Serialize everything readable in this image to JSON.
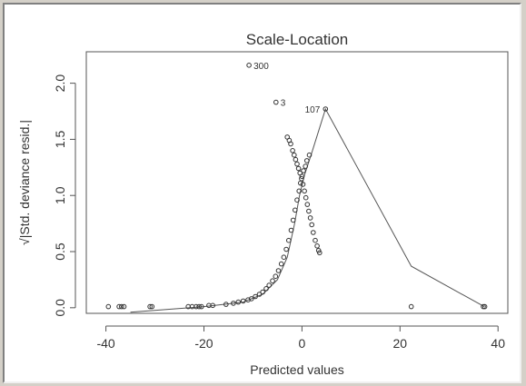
{
  "chart_data": {
    "type": "scatter",
    "title": "Scale-Location",
    "xlabel": "Predicted values",
    "ylabel": "√|Std. deviance resid.|",
    "xlim": [
      -44,
      42
    ],
    "ylim": [
      -0.05,
      2.28
    ],
    "xticks": [
      -40,
      -20,
      0,
      20,
      40
    ],
    "xtick_labels": [
      "-40",
      "-20",
      "0",
      "20",
      "40"
    ],
    "yticks": [
      0.0,
      0.5,
      1.0,
      1.5,
      2.0
    ],
    "ytick_labels": [
      "0.0",
      "0.5",
      "1.0",
      "1.5",
      "2.0"
    ],
    "grid": false,
    "points": [
      [
        -39.5,
        0.01
      ],
      [
        -37.3,
        0.01
      ],
      [
        -36.8,
        0.01
      ],
      [
        -36.3,
        0.01
      ],
      [
        -31.0,
        0.01
      ],
      [
        -30.6,
        0.01
      ],
      [
        -23.2,
        0.01
      ],
      [
        -22.4,
        0.01
      ],
      [
        -21.6,
        0.01
      ],
      [
        -21.0,
        0.01
      ],
      [
        -20.5,
        0.01
      ],
      [
        -19.0,
        0.02
      ],
      [
        -18.2,
        0.02
      ],
      [
        -15.5,
        0.03
      ],
      [
        -14.0,
        0.04
      ],
      [
        -13.0,
        0.05
      ],
      [
        -12.0,
        0.06
      ],
      [
        -11.0,
        0.07
      ],
      [
        -10.3,
        0.08
      ],
      [
        -9.5,
        0.1
      ],
      [
        -8.7,
        0.12
      ],
      [
        -8.0,
        0.14
      ],
      [
        -7.3,
        0.17
      ],
      [
        -6.7,
        0.2
      ],
      [
        -6.0,
        0.24
      ],
      [
        -5.4,
        0.28
      ],
      [
        -4.8,
        0.33
      ],
      [
        -4.2,
        0.39
      ],
      [
        -3.7,
        0.45
      ],
      [
        -3.2,
        0.52
      ],
      [
        -2.7,
        0.6
      ],
      [
        -2.2,
        0.69
      ],
      [
        -1.8,
        0.78
      ],
      [
        -1.4,
        0.87
      ],
      [
        -1.0,
        0.96
      ],
      [
        -0.6,
        1.04
      ],
      [
        -0.3,
        1.11
      ],
      [
        0.0,
        1.17
      ],
      [
        0.3,
        1.22
      ],
      [
        -3.0,
        1.52
      ],
      [
        -2.6,
        1.49
      ],
      [
        -2.3,
        1.46
      ],
      [
        -1.9,
        1.4
      ],
      [
        -1.6,
        1.36
      ],
      [
        -1.3,
        1.32
      ],
      [
        -1.0,
        1.28
      ],
      [
        -0.7,
        1.24
      ],
      [
        -0.4,
        1.2
      ],
      [
        -0.1,
        1.15
      ],
      [
        0.2,
        1.1
      ],
      [
        0.5,
        1.04
      ],
      [
        0.8,
        0.98
      ],
      [
        1.1,
        0.92
      ],
      [
        1.4,
        0.86
      ],
      [
        1.7,
        0.8
      ],
      [
        2.0,
        0.74
      ],
      [
        2.3,
        0.67
      ],
      [
        2.7,
        0.6
      ],
      [
        3.1,
        0.55
      ],
      [
        3.4,
        0.51
      ],
      [
        3.6,
        0.49
      ],
      [
        0.7,
        1.26
      ],
      [
        1.0,
        1.31
      ],
      [
        1.5,
        1.36
      ],
      [
        -10.8,
        2.16
      ],
      [
        -5.3,
        1.83
      ],
      [
        4.8,
        1.77
      ],
      [
        22.3,
        0.01
      ],
      [
        37.0,
        0.01
      ],
      [
        37.3,
        0.01
      ]
    ],
    "smooth_line": [
      [
        -35.0,
        -0.04
      ],
      [
        -20.0,
        0.01
      ],
      [
        -12.0,
        0.05
      ],
      [
        -8.0,
        0.12
      ],
      [
        -5.0,
        0.25
      ],
      [
        -3.0,
        0.45
      ],
      [
        -1.5,
        0.75
      ],
      [
        -0.5,
        1.0
      ],
      [
        0.5,
        1.18
      ],
      [
        2.0,
        1.38
      ],
      [
        4.8,
        1.77
      ],
      [
        22.3,
        0.37
      ],
      [
        37.2,
        0.01
      ]
    ],
    "annotations": [
      {
        "label": "300",
        "x": -10.8,
        "y": 2.16,
        "side": "right"
      },
      {
        "label": "3",
        "x": -5.3,
        "y": 1.83,
        "side": "right"
      },
      {
        "label": "107",
        "x": 4.8,
        "y": 1.77,
        "side": "left"
      }
    ]
  }
}
